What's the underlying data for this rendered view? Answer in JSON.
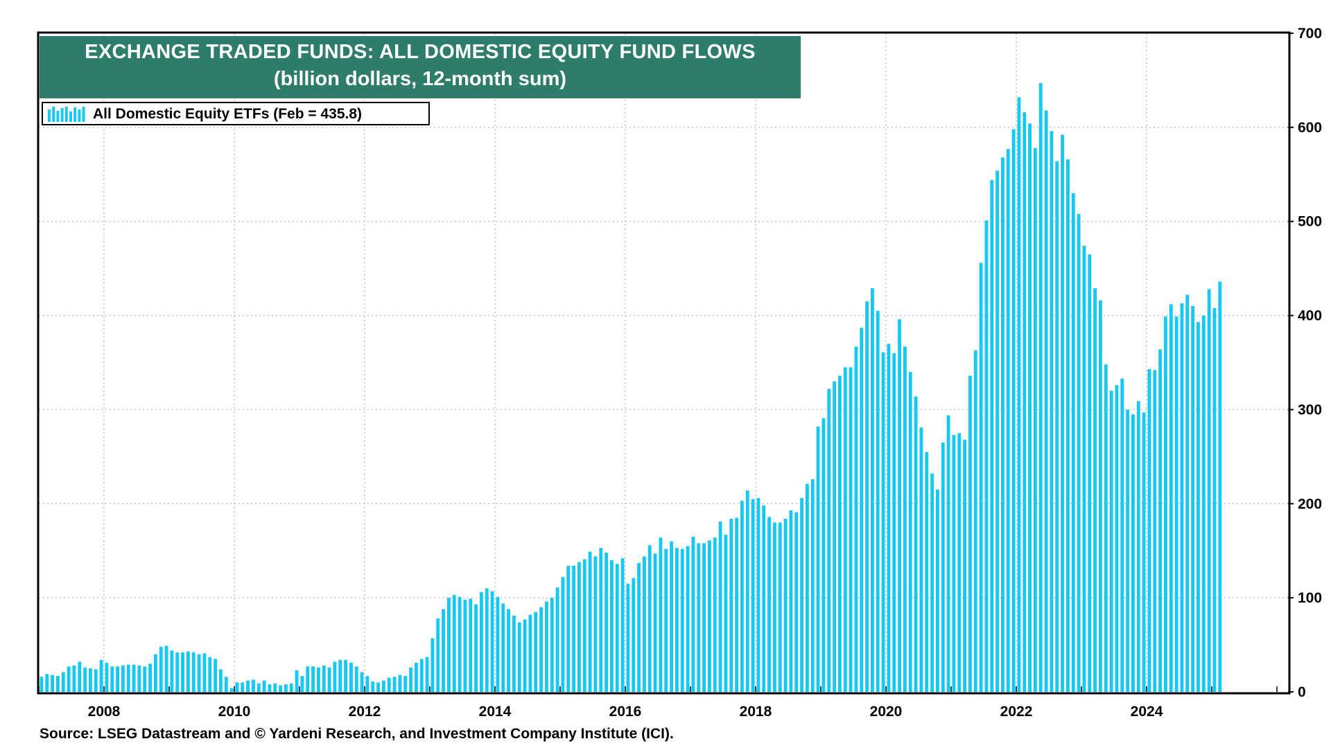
{
  "title_line1": "EXCHANGE TRADED FUNDS: ALL DOMESTIC EQUITY FUND FLOWS",
  "title_line2": "(billion dollars, 12-month sum)",
  "legend_label": "All Domestic Equity ETFs (Feb = 435.8)",
  "source": "Source: LSEG Datastream and © Yardeni Research, and Investment Company Institute (ICI).",
  "colors": {
    "bar": "#18c8f0",
    "title_bg": "#2e7d6b",
    "grid": "#c0c0c0"
  },
  "chart_data": {
    "type": "bar",
    "title": "EXCHANGE TRADED FUNDS: ALL DOMESTIC EQUITY FUND FLOWS",
    "subtitle": "(billion dollars, 12-month sum)",
    "series_name": "All Domestic Equity ETFs (Feb = 435.8)",
    "ylabel": "",
    "xlabel": "",
    "y_axis_position": "right",
    "ylim": [
      0,
      700
    ],
    "yticks": [
      0,
      100,
      200,
      300,
      400,
      500,
      600,
      700
    ],
    "xlim": [
      2007.0,
      2026.17
    ],
    "xticks": [
      2008,
      2010,
      2012,
      2014,
      2016,
      2018,
      2020,
      2022,
      2024
    ],
    "grid": true,
    "start": "2007-01",
    "frequency": "monthly",
    "values": [
      16,
      19,
      18,
      17,
      21,
      27,
      28,
      32,
      26,
      25,
      24,
      34,
      31,
      27,
      27,
      28,
      29,
      29,
      28,
      27,
      30,
      40,
      48,
      49,
      44,
      42,
      42,
      43,
      42,
      40,
      41,
      37,
      35,
      24,
      16,
      4,
      10,
      10,
      12,
      13,
      9,
      12,
      8,
      9,
      7,
      8,
      9,
      23,
      17,
      27,
      27,
      26,
      28,
      26,
      32,
      34,
      34,
      31,
      27,
      21,
      17,
      11,
      10,
      12,
      15,
      16,
      18,
      17,
      26,
      31,
      35,
      37,
      57,
      78,
      88,
      100,
      103,
      101,
      98,
      99,
      93,
      106,
      110,
      107,
      101,
      94,
      88,
      81,
      74,
      77,
      82,
      85,
      90,
      96,
      100,
      111,
      122,
      134,
      134,
      138,
      141,
      149,
      144,
      153,
      148,
      140,
      136,
      142,
      115,
      121,
      137,
      144,
      156,
      147,
      164,
      152,
      160,
      153,
      152,
      155,
      165,
      158,
      158,
      161,
      164,
      181,
      167,
      184,
      185,
      203,
      214,
      205,
      206,
      198,
      186,
      180,
      180,
      184,
      193,
      191,
      206,
      221,
      226,
      282,
      291,
      322,
      330,
      336,
      345,
      345,
      367,
      387,
      415,
      429,
      405,
      361,
      370,
      360,
      396,
      367,
      340,
      314,
      281,
      255,
      232,
      215,
      265,
      294,
      273,
      275,
      268,
      336,
      363,
      456,
      501,
      544,
      554,
      568,
      577,
      598,
      632,
      616,
      604,
      578,
      647,
      618,
      596,
      564,
      592,
      566,
      530,
      508,
      474,
      465,
      429,
      416,
      348,
      320,
      326,
      333,
      300,
      295,
      309,
      297,
      343,
      342,
      364,
      399,
      412,
      399,
      413,
      422,
      410,
      393,
      400,
      428,
      408,
      436
    ]
  }
}
